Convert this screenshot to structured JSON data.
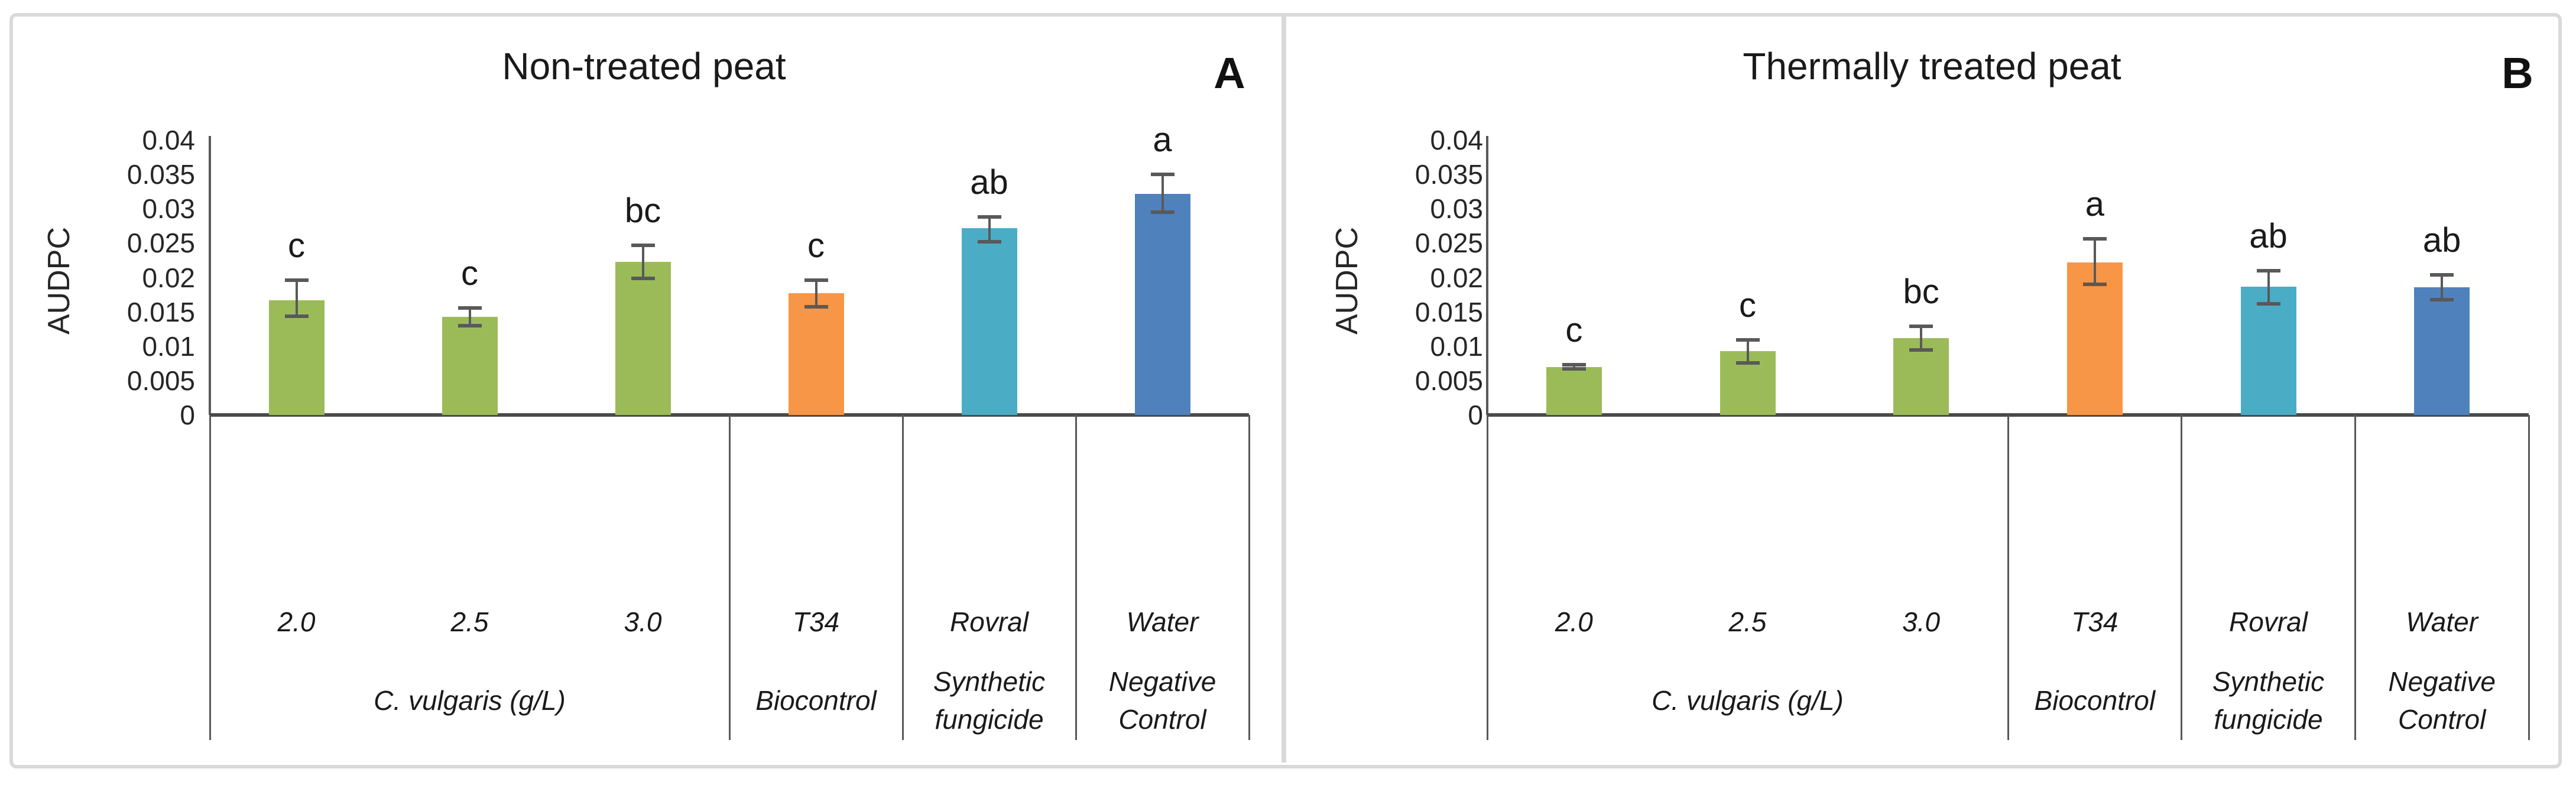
{
  "figure": {
    "background": "#ffffff",
    "border_color": "#d9d9d9",
    "axis_color": "#595959",
    "text_color": "#262626",
    "yticks": [
      "0",
      "0.005",
      "0.01",
      "0.015",
      "0.02",
      "0.025",
      "0.03",
      "0.035",
      "0.04"
    ]
  },
  "chart_data": [
    {
      "type": "bar",
      "panel_letter": "A",
      "title": "Non-treated peat",
      "ylabel": "AUDPC",
      "ylim": [
        0,
        0.04
      ],
      "grid": "off",
      "legend": "none",
      "categories": [
        "2.0",
        "2.5",
        "3.0",
        "T34",
        "Rovral",
        "Water"
      ],
      "groups": [
        {
          "label": "C. vulgaris (g/L)",
          "lines": [
            "C. vulgaris (g/L)"
          ],
          "start": 0,
          "end": 3
        },
        {
          "label": "Biocontrol",
          "lines": [
            "Biocontrol"
          ],
          "start": 3,
          "end": 4
        },
        {
          "label": "Synthetic fungicide",
          "lines": [
            "Synthetic",
            "fungicide"
          ],
          "start": 4,
          "end": 5
        },
        {
          "label": "Negative Control",
          "lines": [
            "Negative",
            "Control"
          ],
          "start": 5,
          "end": 6
        }
      ],
      "values": [
        0.0167,
        0.0143,
        0.0223,
        0.0177,
        0.0272,
        0.0322
      ],
      "err_up": [
        0.0029,
        0.0013,
        0.0024,
        0.0019,
        0.0016,
        0.0028
      ],
      "err_down": [
        0.0023,
        0.0013,
        0.0024,
        0.002,
        0.002,
        0.0027
      ],
      "sig_letters": [
        "c",
        "c",
        "bc",
        "c",
        "ab",
        "a"
      ],
      "bar_colors": [
        "#9bbb59",
        "#9bbb59",
        "#9bbb59",
        "#f79646",
        "#4bacc6",
        "#4f81bd"
      ]
    },
    {
      "type": "bar",
      "panel_letter": "B",
      "title": "Thermally treated peat",
      "ylabel": "AUDPC",
      "ylim": [
        0,
        0.04
      ],
      "grid": "off",
      "legend": "none",
      "categories": [
        "2.0",
        "2.5",
        "3.0",
        "T34",
        "Rovral",
        "Water"
      ],
      "groups": [
        {
          "label": "C. vulgaris (g/L)",
          "lines": [
            "C. vulgaris (g/L)"
          ],
          "start": 0,
          "end": 3
        },
        {
          "label": "Biocontrol",
          "lines": [
            "Biocontrol"
          ],
          "start": 3,
          "end": 4
        },
        {
          "label": "Synthetic fungicide",
          "lines": [
            "Synthetic",
            "fungicide"
          ],
          "start": 4,
          "end": 5
        },
        {
          "label": "Negative Control",
          "lines": [
            "Negative",
            "Control"
          ],
          "start": 5,
          "end": 6
        }
      ],
      "values": [
        0.007,
        0.0093,
        0.0112,
        0.0222,
        0.0187,
        0.0186
      ],
      "err_up": [
        0.0003,
        0.0016,
        0.0017,
        0.0034,
        0.0023,
        0.0018
      ],
      "err_down": [
        0.0003,
        0.0017,
        0.0017,
        0.0032,
        0.0025,
        0.0018
      ],
      "sig_letters": [
        "c",
        "c",
        "bc",
        "a",
        "ab",
        "ab"
      ],
      "bar_colors": [
        "#9bbb59",
        "#9bbb59",
        "#9bbb59",
        "#f79646",
        "#4bacc6",
        "#4f81bd"
      ]
    }
  ]
}
